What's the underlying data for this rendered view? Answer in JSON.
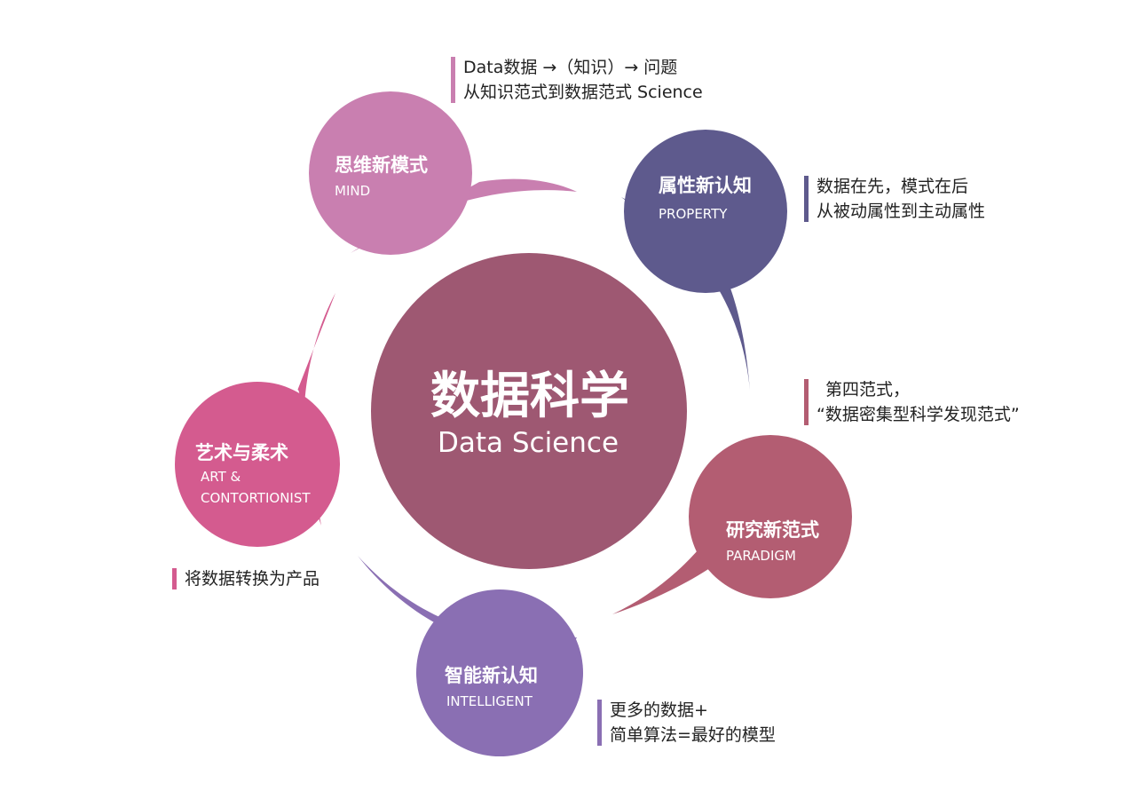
{
  "center": {
    "title": "数据科学",
    "subtitle": "Data Science"
  },
  "petals": [
    {
      "id": "mind",
      "title": "思维新模式",
      "sub": [
        "MIND"
      ],
      "color": "#c97fb0"
    },
    {
      "id": "property",
      "title": "属性新认知",
      "sub": [
        "PROPERTY"
      ],
      "color": "#5e5a8d"
    },
    {
      "id": "paradigm",
      "title": "研究新范式",
      "sub": [
        "PARADIGM"
      ],
      "color": "#b35d72"
    },
    {
      "id": "intelligent",
      "title": "智能新认知",
      "sub": [
        "INTELLIGENT"
      ],
      "color": "#8a6fb3"
    },
    {
      "id": "art",
      "title": "艺术与柔术",
      "sub": [
        "ART &",
        "CONTORTIONIST"
      ],
      "color": "#d45b8f"
    }
  ],
  "notes": [
    {
      "id": "mind",
      "lines": [
        "Data数据 →（知识）→ 问题",
        "从知识范式到数据范式 Science"
      ],
      "color": "#c97fb0"
    },
    {
      "id": "property",
      "lines": [
        "数据在先，模式在后",
        "从被动属性到主动属性"
      ],
      "color": "#5e5a8d"
    },
    {
      "id": "paradigm",
      "lines": [
        "第四范式，",
        "“数据密集型科学发现范式”"
      ],
      "color": "#b35d72"
    },
    {
      "id": "intelligent",
      "lines": [
        "更多的数据+",
        "简单算法=最好的模型"
      ],
      "color": "#8a6fb3"
    },
    {
      "id": "art",
      "lines": [
        "将数据转换为产品"
      ],
      "color": "#d45b8f"
    }
  ],
  "center_color": "#9e5872"
}
